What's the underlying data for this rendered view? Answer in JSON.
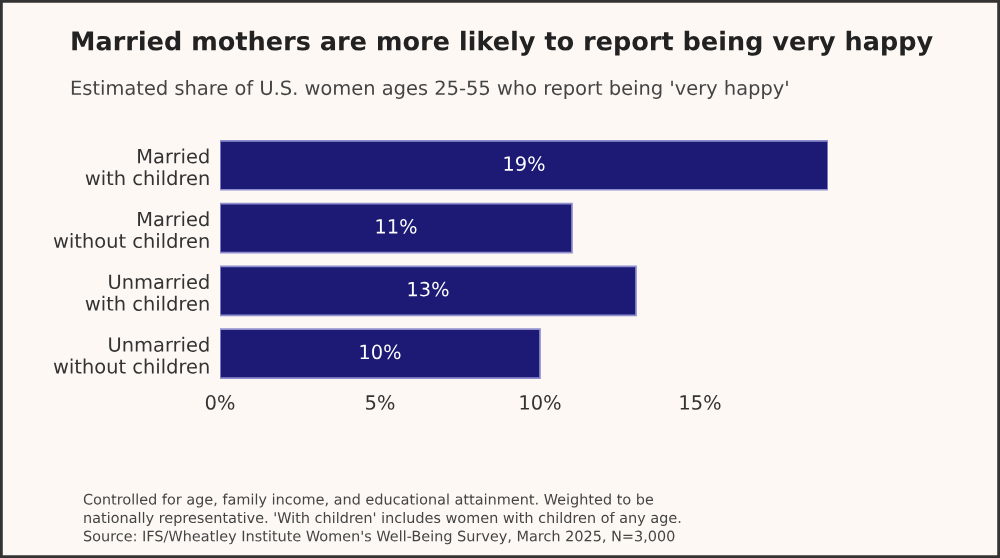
{
  "chart_data": {
    "type": "bar",
    "orientation": "horizontal",
    "title": "Married mothers are more likely to report being very happy",
    "subtitle": "Estimated share of U.S. women ages 25-55 who report being 'very happy'",
    "categories": [
      "Married\nwith children",
      "Married\nwithout children",
      "Unmarried\nwith children",
      "Unmarried\nwithout children"
    ],
    "values": [
      19,
      11,
      13,
      10
    ],
    "value_labels": [
      "19%",
      "11%",
      "13%",
      "10%"
    ],
    "color": "#1c1a74",
    "xlim": [
      0,
      19
    ],
    "xticks": [
      {
        "value": 0,
        "label": "0%"
      },
      {
        "value": 5,
        "label": "5%"
      },
      {
        "value": 10,
        "label": "10%"
      },
      {
        "value": 15,
        "label": "15%"
      }
    ],
    "grid": false,
    "annotations": [
      "Controlled for age, family income, and educational attainment. Weighted to be\nnationally representative. 'With children' includes women with children of any age.\nSource: IFS/Wheatley Institute Women's Well-Being Survey, March 2025, N=3,000"
    ]
  }
}
